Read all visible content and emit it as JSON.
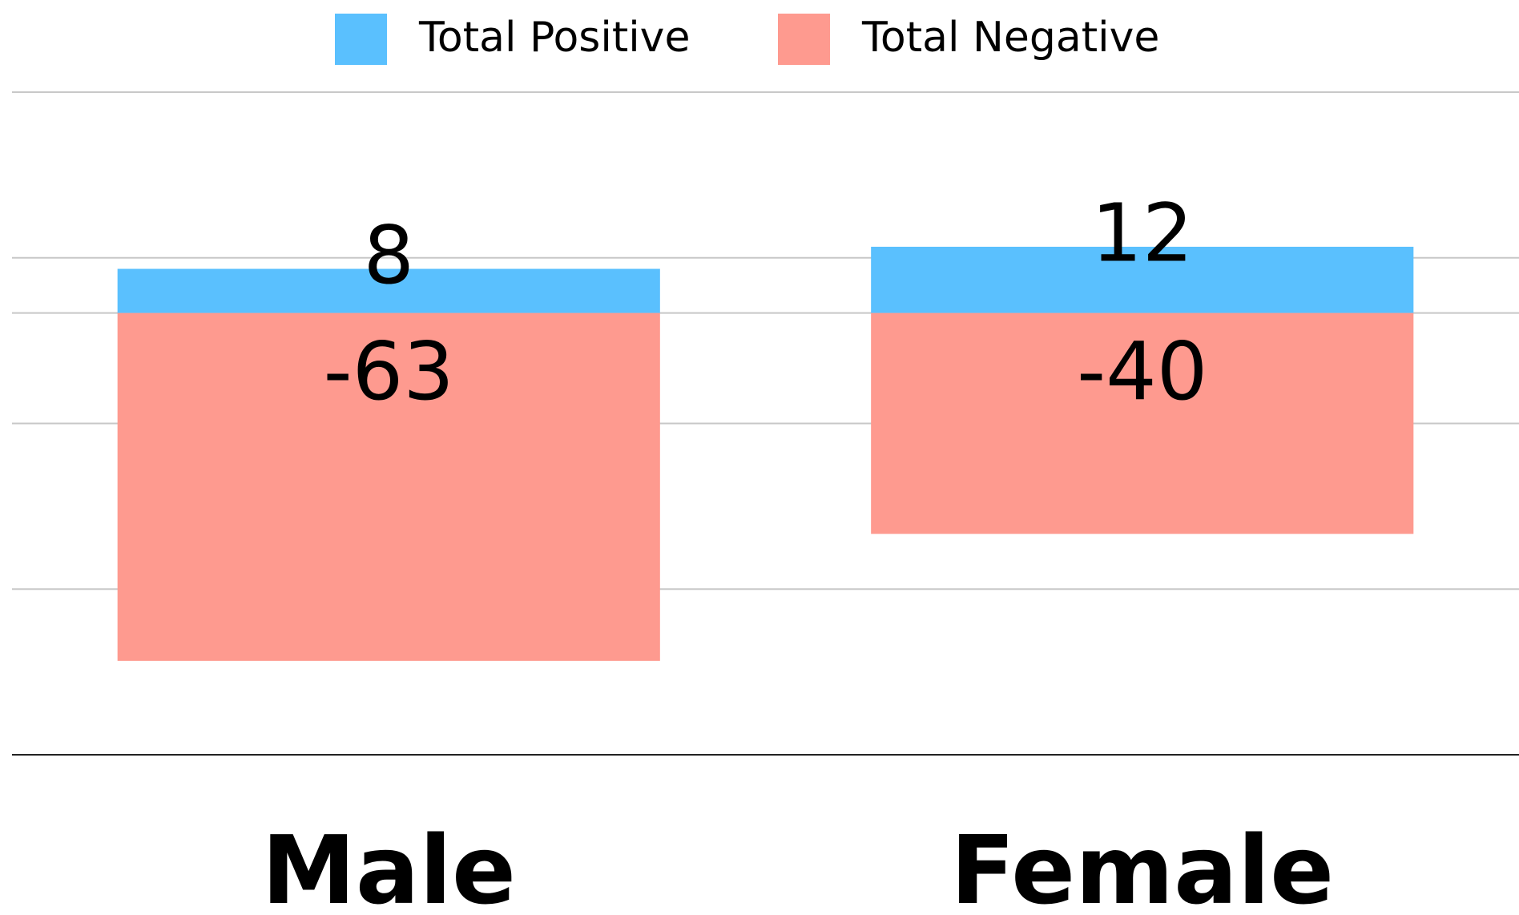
{
  "chart_data": {
    "type": "bar",
    "stacked": true,
    "categories": [
      "Male",
      "Female"
    ],
    "series": [
      {
        "name": "Total Positive",
        "color": "#5ac0fe",
        "values": [
          8,
          12
        ]
      },
      {
        "name": "Total Negative",
        "color": "#fe9a8f",
        "values": [
          -63,
          -40
        ]
      }
    ],
    "ylim": [
      -80,
      40
    ],
    "yticks": [
      40,
      10,
      0,
      -20,
      -50
    ],
    "grid": true,
    "legend": "top"
  }
}
